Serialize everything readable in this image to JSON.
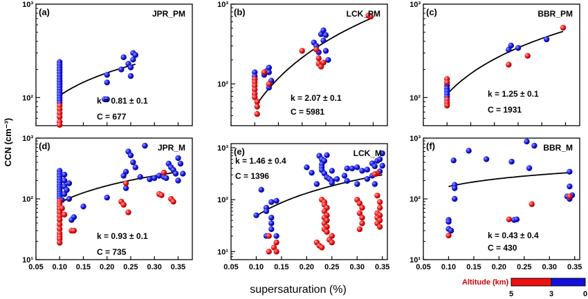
{
  "figure": {
    "ylabel": "CCN (cm⁻³)",
    "xlabel": "supersaturation (%)"
  },
  "legend": {
    "title": "Altitude (km)",
    "ticks": [
      "5",
      "3",
      "0"
    ],
    "colors": {
      "high": "#ee1111",
      "low": "#1111dd"
    }
  },
  "chart_data": [
    {
      "type": "scatter",
      "id": "a",
      "panel_label": "(a)",
      "site": "JPR_PM",
      "fit_k": "k = 0.81 ± 0.1",
      "fit_c": "C = 677",
      "xlim": [
        0.05,
        0.38
      ],
      "ylim": [
        50,
        1000
      ],
      "yscale": "log",
      "yticks": [
        100,
        1000
      ],
      "ytick_labels": [
        "10²",
        "10³"
      ],
      "fit": {
        "C": 677,
        "k": 0.81,
        "xrange": [
          0.1,
          0.26
        ]
      },
      "points_low": [
        [
          0.1,
          240
        ],
        [
          0.1,
          225
        ],
        [
          0.1,
          210
        ],
        [
          0.1,
          198
        ],
        [
          0.1,
          185
        ],
        [
          0.1,
          172
        ],
        [
          0.1,
          160
        ],
        [
          0.1,
          150
        ],
        [
          0.1,
          140
        ],
        [
          0.1,
          131
        ],
        [
          0.1,
          122
        ],
        [
          0.1,
          114
        ],
        [
          0.1,
          107
        ],
        [
          0.1,
          100
        ],
        [
          0.1,
          94
        ],
        [
          0.1,
          88
        ],
        [
          0.2,
          175
        ],
        [
          0.2,
          145
        ],
        [
          0.195,
          96
        ],
        [
          0.2,
          96
        ],
        [
          0.235,
          270
        ],
        [
          0.245,
          230
        ],
        [
          0.25,
          210
        ],
        [
          0.255,
          300
        ],
        [
          0.26,
          285
        ],
        [
          0.255,
          255
        ],
        [
          0.25,
          170
        ],
        [
          0.23,
          200
        ]
      ],
      "points_high": [
        [
          0.1,
          82
        ],
        [
          0.1,
          75
        ],
        [
          0.1,
          68
        ],
        [
          0.1,
          62
        ],
        [
          0.1,
          55
        ],
        [
          0.1,
          51
        ]
      ]
    },
    {
      "type": "scatter",
      "id": "b",
      "panel_label": "(b)",
      "site": "LCK_PM",
      "fit_k": "k = 2.07 ± 0.1",
      "fit_c": "C = 5981",
      "xlim": [
        0.05,
        0.38
      ],
      "ylim": [
        30,
        1000
      ],
      "yscale": "log",
      "yticks": [
        100,
        1000
      ],
      "ytick_labels": [
        "10²",
        "10³"
      ],
      "fit": {
        "C": 5981,
        "k": 2.07,
        "xrange": [
          0.1,
          0.345
        ]
      },
      "points_low": [
        [
          0.1,
          140
        ],
        [
          0.1,
          125
        ],
        [
          0.1,
          115
        ],
        [
          0.12,
          130
        ],
        [
          0.125,
          145
        ],
        [
          0.13,
          160
        ],
        [
          0.13,
          140
        ],
        [
          0.135,
          110
        ],
        [
          0.13,
          90
        ],
        [
          0.225,
          330
        ],
        [
          0.23,
          300
        ],
        [
          0.235,
          250
        ],
        [
          0.24,
          420
        ],
        [
          0.245,
          470
        ],
        [
          0.25,
          410
        ],
        [
          0.245,
          350
        ],
        [
          0.25,
          260
        ],
        [
          0.255,
          200
        ]
      ],
      "points_high": [
        [
          0.1,
          115
        ],
        [
          0.1,
          105
        ],
        [
          0.1,
          95
        ],
        [
          0.1,
          85
        ],
        [
          0.1,
          75
        ],
        [
          0.1,
          68
        ],
        [
          0.105,
          60
        ],
        [
          0.105,
          52
        ],
        [
          0.105,
          42
        ],
        [
          0.12,
          140
        ],
        [
          0.13,
          100
        ],
        [
          0.2,
          260
        ],
        [
          0.23,
          270
        ],
        [
          0.235,
          210
        ],
        [
          0.235,
          180
        ],
        [
          0.24,
          165
        ],
        [
          0.245,
          185
        ],
        [
          0.34,
          720
        ],
        [
          0.345,
          700
        ]
      ]
    },
    {
      "type": "scatter",
      "id": "c",
      "panel_label": "(c)",
      "site": "BBR_PM",
      "fit_k": "k = 1.25 ± 0.1",
      "fit_c": "C = 1931",
      "xlim": [
        0.05,
        0.38
      ],
      "ylim": [
        50,
        1000
      ],
      "yscale": "log",
      "yticks": [
        100,
        1000
      ],
      "ytick_labels": [
        "10²",
        "10³"
      ],
      "fit": {
        "C": 1931,
        "k": 1.25,
        "xrange": [
          0.1,
          0.345
        ]
      },
      "points_low": [
        [
          0.1,
          135
        ],
        [
          0.1,
          125
        ],
        [
          0.1,
          117
        ],
        [
          0.1,
          109
        ],
        [
          0.1,
          102
        ],
        [
          0.23,
          325
        ],
        [
          0.235,
          360
        ],
        [
          0.25,
          340
        ],
        [
          0.31,
          420
        ]
      ],
      "points_high": [
        [
          0.1,
          158
        ],
        [
          0.1,
          145
        ],
        [
          0.1,
          95
        ],
        [
          0.1,
          88
        ],
        [
          0.1,
          82
        ],
        [
          0.23,
          225
        ],
        [
          0.27,
          280
        ],
        [
          0.345,
          560
        ]
      ]
    },
    {
      "type": "scatter",
      "id": "d",
      "panel_label": "(d)",
      "site": "JPR_M",
      "fit_k": "k = 0.93 ± 0.1",
      "fit_c": "C = 735",
      "xlim": [
        0.05,
        0.38
      ],
      "ylim": [
        10,
        1000
      ],
      "yscale": "log",
      "yticks": [
        10,
        100,
        1000
      ],
      "ytick_labels": [
        "10¹",
        "10²",
        "10³"
      ],
      "fit": {
        "C": 735,
        "k": 0.93,
        "xrange": [
          0.1,
          0.35
        ]
      },
      "points_low": [
        [
          0.1,
          290
        ],
        [
          0.1,
          260
        ],
        [
          0.1,
          235
        ],
        [
          0.1,
          210
        ],
        [
          0.1,
          190
        ],
        [
          0.1,
          172
        ],
        [
          0.1,
          158
        ],
        [
          0.1,
          145
        ],
        [
          0.1,
          133
        ],
        [
          0.1,
          122
        ],
        [
          0.1,
          112
        ],
        [
          0.1,
          103
        ],
        [
          0.105,
          96
        ],
        [
          0.11,
          250
        ],
        [
          0.11,
          200
        ],
        [
          0.11,
          160
        ],
        [
          0.11,
          120
        ],
        [
          0.12,
          100
        ],
        [
          0.115,
          140
        ],
        [
          0.12,
          180
        ],
        [
          0.13,
          50
        ],
        [
          0.125,
          45
        ],
        [
          0.15,
          75
        ],
        [
          0.2,
          105
        ],
        [
          0.235,
          240
        ],
        [
          0.24,
          280
        ],
        [
          0.245,
          600
        ],
        [
          0.25,
          520
        ],
        [
          0.255,
          400
        ],
        [
          0.26,
          330
        ],
        [
          0.27,
          230
        ],
        [
          0.28,
          750
        ],
        [
          0.29,
          210
        ],
        [
          0.3,
          220
        ],
        [
          0.31,
          240
        ],
        [
          0.32,
          230
        ],
        [
          0.33,
          380
        ],
        [
          0.335,
          330
        ],
        [
          0.34,
          300
        ],
        [
          0.345,
          260
        ],
        [
          0.35,
          470
        ],
        [
          0.355,
          380
        ],
        [
          0.35,
          200
        ],
        [
          0.36,
          260
        ],
        [
          0.325,
          220
        ],
        [
          0.24,
          150
        ]
      ],
      "points_high": [
        [
          0.1,
          92
        ],
        [
          0.1,
          84
        ],
        [
          0.1,
          76
        ],
        [
          0.1,
          68
        ],
        [
          0.1,
          60
        ],
        [
          0.1,
          52
        ],
        [
          0.1,
          45
        ],
        [
          0.1,
          38
        ],
        [
          0.1,
          32
        ],
        [
          0.1,
          27
        ],
        [
          0.1,
          24
        ],
        [
          0.1,
          22
        ],
        [
          0.1,
          19
        ],
        [
          0.105,
          70
        ],
        [
          0.11,
          55
        ],
        [
          0.125,
          30
        ],
        [
          0.13,
          30
        ],
        [
          0.23,
          90
        ],
        [
          0.235,
          80
        ],
        [
          0.245,
          60
        ],
        [
          0.24,
          180
        ],
        [
          0.31,
          120
        ],
        [
          0.315,
          115
        ],
        [
          0.32,
          270
        ],
        [
          0.335,
          100
        ],
        [
          0.34,
          90
        ]
      ]
    },
    {
      "type": "scatter",
      "id": "e",
      "panel_label": "(e)",
      "site": "LCK_M",
      "fit_k": "k = 1.46 ± 0.4",
      "fit_c": "C = 1396",
      "xlim": [
        0.05,
        0.36
      ],
      "ylim": [
        7,
        1200
      ],
      "yscale": "log",
      "yticks": [
        10,
        100,
        1000
      ],
      "ytick_labels": [
        "10¹",
        "10²",
        "10³"
      ],
      "fit": {
        "C": 1396,
        "k": 1.46,
        "xrange": [
          0.1,
          0.35
        ]
      },
      "points_low": [
        [
          0.11,
          155
        ],
        [
          0.1,
          50
        ],
        [
          0.12,
          70
        ],
        [
          0.13,
          90
        ],
        [
          0.14,
          95
        ],
        [
          0.12,
          60
        ],
        [
          0.13,
          45
        ],
        [
          0.13,
          35
        ],
        [
          0.13,
          27
        ],
        [
          0.14,
          20
        ],
        [
          0.12,
          20
        ],
        [
          0.2,
          420
        ],
        [
          0.21,
          330
        ],
        [
          0.22,
          200
        ],
        [
          0.225,
          700
        ],
        [
          0.23,
          600
        ],
        [
          0.235,
          560
        ],
        [
          0.24,
          720
        ],
        [
          0.23,
          480
        ],
        [
          0.23,
          420
        ],
        [
          0.23,
          370
        ],
        [
          0.235,
          320
        ],
        [
          0.24,
          270
        ],
        [
          0.245,
          250
        ],
        [
          0.25,
          230
        ],
        [
          0.25,
          210
        ],
        [
          0.25,
          360
        ],
        [
          0.26,
          250
        ],
        [
          0.275,
          290
        ],
        [
          0.28,
          400
        ],
        [
          0.29,
          400
        ],
        [
          0.3,
          420
        ],
        [
          0.31,
          360
        ],
        [
          0.32,
          380
        ],
        [
          0.33,
          500
        ],
        [
          0.335,
          440
        ],
        [
          0.34,
          560
        ],
        [
          0.345,
          600
        ],
        [
          0.35,
          780
        ],
        [
          0.35,
          450
        ],
        [
          0.345,
          350
        ],
        [
          0.33,
          290
        ],
        [
          0.32,
          250
        ],
        [
          0.335,
          200
        ],
        [
          0.3,
          200
        ],
        [
          0.28,
          230
        ]
      ],
      "points_high": [
        [
          0.125,
          20
        ],
        [
          0.14,
          15
        ],
        [
          0.135,
          12
        ],
        [
          0.14,
          10
        ],
        [
          0.125,
          10
        ],
        [
          0.22,
          15
        ],
        [
          0.225,
          13
        ],
        [
          0.23,
          12
        ],
        [
          0.23,
          100
        ],
        [
          0.235,
          90
        ],
        [
          0.235,
          80
        ],
        [
          0.24,
          70
        ],
        [
          0.235,
          60
        ],
        [
          0.24,
          50
        ],
        [
          0.235,
          45
        ],
        [
          0.24,
          40
        ],
        [
          0.235,
          35
        ],
        [
          0.24,
          30
        ],
        [
          0.235,
          27
        ],
        [
          0.24,
          24
        ],
        [
          0.25,
          20
        ],
        [
          0.245,
          17
        ],
        [
          0.25,
          15
        ],
        [
          0.3,
          100
        ],
        [
          0.305,
          85
        ],
        [
          0.31,
          70
        ],
        [
          0.305,
          55
        ],
        [
          0.31,
          45
        ],
        [
          0.31,
          35
        ],
        [
          0.305,
          27
        ],
        [
          0.34,
          120
        ],
        [
          0.345,
          90
        ],
        [
          0.345,
          70
        ],
        [
          0.34,
          55
        ],
        [
          0.345,
          50
        ],
        [
          0.34,
          45
        ],
        [
          0.345,
          40
        ],
        [
          0.34,
          35
        ],
        [
          0.345,
          30
        ],
        [
          0.34,
          320
        ],
        [
          0.335,
          310
        ]
      ]
    },
    {
      "type": "scatter",
      "id": "f",
      "panel_label": "(f)",
      "site": "BBR_M",
      "fit_k": "k = 0.43 ± 0.4",
      "fit_c": "C = 430",
      "xlim": [
        0.05,
        0.36
      ],
      "ylim": [
        10,
        1000
      ],
      "yscale": "log",
      "yticks": [
        10,
        100,
        1000
      ],
      "ytick_labels": [
        "10¹",
        "10²",
        "10³"
      ],
      "fit": {
        "C": 430,
        "k": 0.43,
        "xrange": [
          0.1,
          0.34
        ]
      },
      "points_low": [
        [
          0.1,
          45
        ],
        [
          0.1,
          42
        ],
        [
          0.1,
          32
        ],
        [
          0.105,
          30
        ],
        [
          0.11,
          430
        ],
        [
          0.112,
          170
        ],
        [
          0.112,
          150
        ],
        [
          0.112,
          100
        ],
        [
          0.14,
          620
        ],
        [
          0.175,
          450
        ],
        [
          0.225,
          410
        ],
        [
          0.23,
          45
        ],
        [
          0.235,
          46
        ],
        [
          0.255,
          880
        ],
        [
          0.26,
          320
        ],
        [
          0.27,
          750
        ],
        [
          0.34,
          280
        ],
        [
          0.34,
          160
        ],
        [
          0.335,
          110
        ],
        [
          0.34,
          100
        ],
        [
          0.345,
          115
        ]
      ],
      "points_high": [
        [
          0.1,
          25
        ],
        [
          0.22,
          46
        ],
        [
          0.265,
          82
        ],
        [
          0.34,
          110
        ]
      ]
    }
  ]
}
